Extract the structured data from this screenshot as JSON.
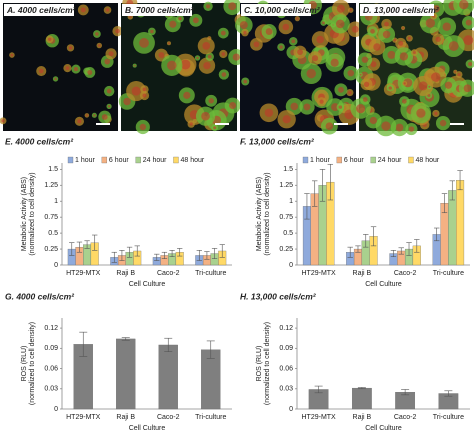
{
  "panels": [
    {
      "label": "A. 4000 cells/cm²"
    },
    {
      "label": "B. 7000 cells/cm²"
    },
    {
      "label": "C. 10,000 cells/cm²"
    },
    {
      "label": "D. 13,000 cells/cm²"
    }
  ],
  "chart_data": [
    {
      "type": "bar",
      "title": "E. 4000 cells/cm²",
      "xlabel": "Cell Culture",
      "ylabel": [
        "Metabolic Activity (ABS)",
        "(normalized to cell density)"
      ],
      "categories": [
        "HT29-MTX",
        "Raji B",
        "Caco-2",
        "Tri-culture"
      ],
      "series": [
        {
          "name": "1 hour",
          "color": "#8faadc",
          "values": [
            0.25,
            0.12,
            0.12,
            0.15
          ],
          "errors": [
            0.1,
            0.08,
            0.05,
            0.08
          ]
        },
        {
          "name": "6 hour",
          "color": "#f4b183",
          "values": [
            0.28,
            0.15,
            0.15,
            0.15
          ],
          "errors": [
            0.08,
            0.08,
            0.05,
            0.06
          ]
        },
        {
          "name": "24 hour",
          "color": "#a9d18e",
          "values": [
            0.32,
            0.2,
            0.18,
            0.18
          ],
          "errors": [
            0.06,
            0.08,
            0.05,
            0.08
          ]
        },
        {
          "name": "48 hour",
          "color": "#ffd966",
          "values": [
            0.35,
            0.22,
            0.2,
            0.22
          ],
          "errors": [
            0.12,
            0.08,
            0.06,
            0.1
          ]
        }
      ],
      "ylim": [
        0,
        1.6
      ],
      "yticks": [
        0,
        0.25,
        0.5,
        0.75,
        1,
        1.25,
        1.5
      ],
      "legend": "top-left"
    },
    {
      "type": "bar",
      "title": "F. 13,000 cells/cm²",
      "xlabel": "Cell Culture",
      "ylabel": [
        "Metabolic Activity (ABS)",
        "(normalized to cell density)"
      ],
      "categories": [
        "HT29-MTX",
        "Raji B",
        "Caco-2",
        "Tri-culture"
      ],
      "series": [
        {
          "name": "1 hour",
          "color": "#8faadc",
          "values": [
            0.92,
            0.2,
            0.18,
            0.48
          ],
          "errors": [
            0.2,
            0.08,
            0.05,
            0.1
          ]
        },
        {
          "name": "6 hour",
          "color": "#f4b183",
          "values": [
            1.12,
            0.25,
            0.22,
            0.97
          ],
          "errors": [
            0.2,
            0.05,
            0.05,
            0.15
          ]
        },
        {
          "name": "24 hour",
          "color": "#a9d18e",
          "values": [
            1.25,
            0.38,
            0.25,
            1.17
          ],
          "errors": [
            0.25,
            0.1,
            0.1,
            0.15
          ]
        },
        {
          "name": "48 hour",
          "color": "#ffd966",
          "values": [
            1.3,
            0.45,
            0.3,
            1.33
          ],
          "errors": [
            0.28,
            0.15,
            0.1,
            0.15
          ]
        }
      ],
      "ylim": [
        0,
        1.6
      ],
      "yticks": [
        0,
        0.25,
        0.5,
        0.75,
        1,
        1.25,
        1.5
      ],
      "legend": "top-left"
    },
    {
      "type": "bar",
      "title": "G. 4000 cells/cm²",
      "xlabel": "Cell Culture",
      "ylabel": [
        "ROS (RLU)",
        "(normalized to cell density)"
      ],
      "categories": [
        "HT29-MTX",
        "Raji B",
        "Caco-2",
        "Tri-culture"
      ],
      "series": [
        {
          "color": "#7f7f7f",
          "values": [
            0.096,
            0.104,
            0.095,
            0.088
          ],
          "errors": [
            0.018,
            0.002,
            0.01,
            0.013
          ]
        }
      ],
      "ylim": [
        0,
        0.135
      ],
      "yticks": [
        0,
        0.03,
        0.06,
        0.09,
        0.12
      ]
    },
    {
      "type": "bar",
      "title": "H. 13,000 cells/cm²",
      "xlabel": "Cell Culture",
      "ylabel": [
        "ROS (RLU)",
        "(normalized to cell density)"
      ],
      "categories": [
        "HT29-MTX",
        "Raji B",
        "Caco-2",
        "Tri-culture"
      ],
      "series": [
        {
          "color": "#7f7f7f",
          "values": [
            0.029,
            0.031,
            0.025,
            0.023
          ],
          "errors": [
            0.005,
            0.001,
            0.004,
            0.004
          ]
        }
      ],
      "ylim": [
        0,
        0.135
      ],
      "yticks": [
        0,
        0.03,
        0.06,
        0.09,
        0.12
      ]
    }
  ]
}
